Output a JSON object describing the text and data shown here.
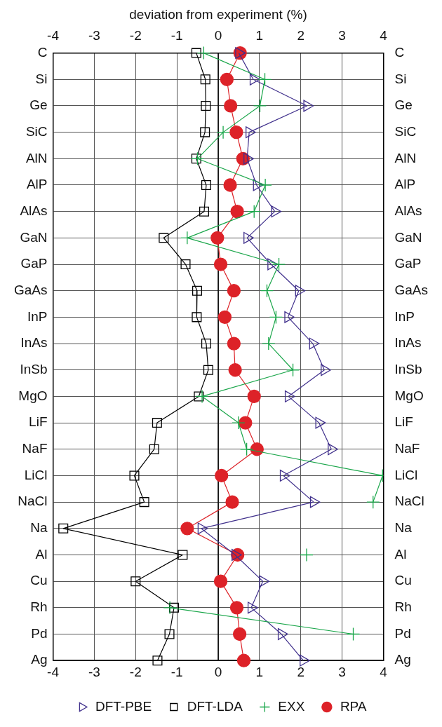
{
  "chart_data": {
    "type": "line",
    "orientation": "horizontal",
    "x2label": "deviation from experiment (%)",
    "categories": [
      "C",
      "Si",
      "Ge",
      "SiC",
      "AlN",
      "AlP",
      "AlAs",
      "GaN",
      "GaP",
      "GaAs",
      "InP",
      "InAs",
      "InSb",
      "MgO",
      "LiF",
      "NaF",
      "LiCl",
      "NaCl",
      "Na",
      "Al",
      "Cu",
      "Rh",
      "Pd",
      "Ag"
    ],
    "series": [
      {
        "name": "DFT-PBE",
        "color": "#40308c",
        "marker": "triangle",
        "values": [
          0.5,
          0.85,
          2.15,
          0.75,
          0.7,
          0.93,
          1.37,
          0.7,
          1.28,
          1.95,
          1.69,
          2.29,
          2.57,
          1.7,
          2.44,
          2.74,
          1.58,
          2.31,
          -0.41,
          0.41,
          1.08,
          0.8,
          1.53,
          2.06
        ]
      },
      {
        "name": "DFT-LDA",
        "color": "#000000",
        "marker": "square",
        "values": [
          -0.53,
          -0.31,
          -0.3,
          -0.32,
          -0.53,
          -0.29,
          -0.34,
          -1.32,
          -0.79,
          -0.51,
          -0.52,
          -0.29,
          -0.24,
          -0.47,
          -1.48,
          -1.55,
          -2.03,
          -1.79,
          -3.75,
          -0.86,
          -2.0,
          -1.07,
          -1.18,
          -1.47
        ]
      },
      {
        "name": "EXX",
        "color": "#1aa64a",
        "marker": "cross",
        "values": [
          -0.35,
          1.13,
          1.01,
          0.12,
          -0.5,
          1.14,
          0.87,
          -0.75,
          1.47,
          1.18,
          1.4,
          1.22,
          1.81,
          -0.39,
          0.49,
          0.69,
          3.98,
          3.75,
          null,
          2.14,
          null,
          -1.17,
          3.27,
          null
        ]
      },
      {
        "name": "RPA",
        "color": "#dd2228",
        "marker": "circle",
        "values": [
          0.53,
          0.21,
          0.3,
          0.44,
          0.6,
          0.29,
          0.46,
          -0.02,
          0.06,
          0.38,
          0.16,
          0.38,
          0.41,
          0.87,
          0.66,
          0.94,
          0.08,
          0.34,
          -0.75,
          0.47,
          0.06,
          0.45,
          0.52,
          0.62
        ]
      }
    ],
    "xlim": [
      -4,
      4
    ],
    "xticks": [
      -4,
      -3,
      -2,
      -1,
      0,
      1,
      2,
      3,
      4
    ],
    "x2lim": [
      -4,
      4
    ],
    "x2ticks": [
      -4,
      -3,
      -2,
      -1,
      0,
      1,
      2,
      3,
      4
    ],
    "ref_lines": [
      {
        "axis": "x",
        "value": 0,
        "color": "#000000",
        "line_style": "solid"
      }
    ],
    "grid": true,
    "legend": "bottom",
    "line_style": "solid"
  }
}
